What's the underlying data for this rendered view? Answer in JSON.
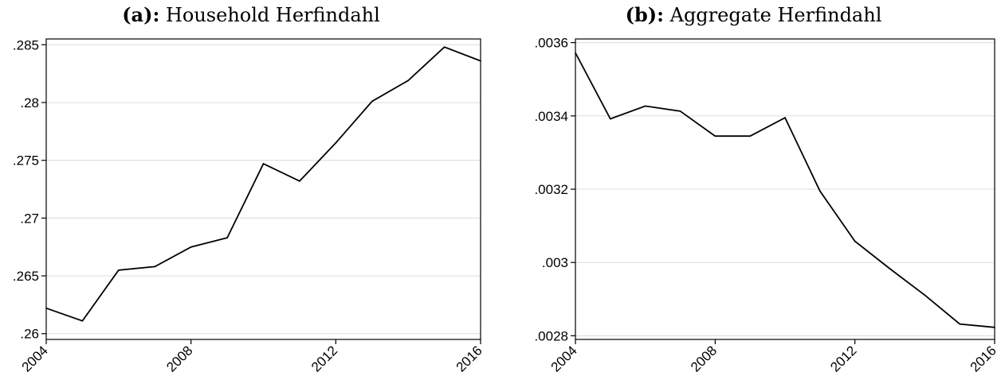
{
  "chart_data": [
    {
      "type": "line",
      "title_prefix": "(a):",
      "title": "Household Herfindahl",
      "xlabel": "",
      "ylabel": "",
      "x": [
        2004,
        2005,
        2006,
        2007,
        2008,
        2009,
        2010,
        2011,
        2012,
        2013,
        2014,
        2015,
        2016
      ],
      "values": [
        0.2622,
        0.2611,
        0.2655,
        0.2658,
        0.2675,
        0.2683,
        0.2747,
        0.2732,
        0.2765,
        0.2801,
        0.2819,
        0.2848,
        0.2836
      ],
      "xlim": [
        2004,
        2016
      ],
      "ylim": [
        0.2595,
        0.2855
      ],
      "x_ticks": [
        2004,
        2008,
        2012,
        2016
      ],
      "x_tick_labels": [
        "2004",
        "2008",
        "2012",
        "2016"
      ],
      "y_ticks": [
        0.26,
        0.265,
        0.27,
        0.275,
        0.28,
        0.285
      ],
      "y_tick_labels": [
        ".26",
        ".265",
        ".27",
        ".275",
        ".28",
        ".285"
      ],
      "grid": true,
      "line_color": "#000000",
      "grid_color": "#dcdcdc"
    },
    {
      "type": "line",
      "title_prefix": "(b):",
      "title": "Aggregate Herfindahl",
      "xlabel": "",
      "ylabel": "",
      "x": [
        2004,
        2005,
        2006,
        2007,
        2008,
        2009,
        2010,
        2011,
        2012,
        2013,
        2014,
        2015,
        2016
      ],
      "values": [
        0.003572,
        0.003392,
        0.003427,
        0.003413,
        0.003345,
        0.003345,
        0.003395,
        0.003195,
        0.003058,
        0.002983,
        0.002911,
        0.002832,
        0.002823
      ],
      "xlim": [
        2004,
        2016
      ],
      "ylim": [
        0.00279,
        0.00361
      ],
      "x_ticks": [
        2004,
        2008,
        2012,
        2016
      ],
      "x_tick_labels": [
        "2004",
        "2008",
        "2012",
        "2016"
      ],
      "y_ticks": [
        0.0028,
        0.003,
        0.0032,
        0.0034,
        0.0036
      ],
      "y_tick_labels": [
        ".0028",
        ".003",
        ".0032",
        ".0034",
        ".0036"
      ],
      "grid": true,
      "line_color": "#000000",
      "grid_color": "#dcdcdc"
    }
  ]
}
